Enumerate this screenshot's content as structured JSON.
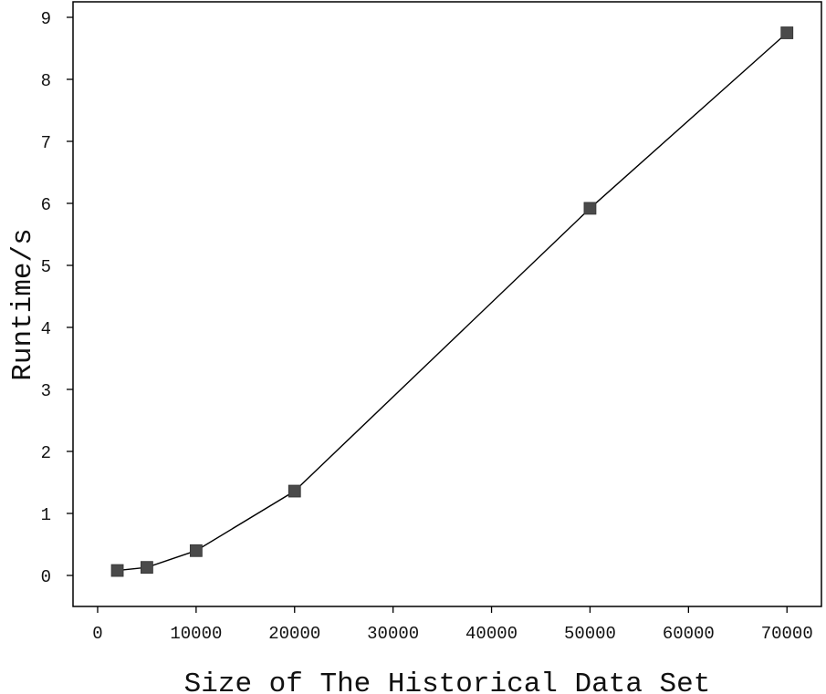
{
  "chart_data": {
    "type": "line",
    "title": "",
    "xlabel": "Size of The Historical Data Set",
    "ylabel": "Runtime/s",
    "xlim": [
      -2500,
      73500
    ],
    "ylim": [
      -0.5,
      9.25
    ],
    "xticks": [
      0,
      10000,
      20000,
      30000,
      40000,
      50000,
      60000,
      70000
    ],
    "yticks": [
      0,
      1,
      2,
      3,
      4,
      5,
      6,
      7,
      8,
      9
    ],
    "grid": false,
    "series": [
      {
        "x": [
          2000,
          5000,
          10000,
          20000,
          50000,
          70000
        ],
        "y": [
          0.08,
          0.13,
          0.4,
          1.36,
          5.92,
          8.75
        ],
        "marker": "square",
        "color": "#4a4a4a",
        "line_color": "#000000"
      }
    ]
  }
}
